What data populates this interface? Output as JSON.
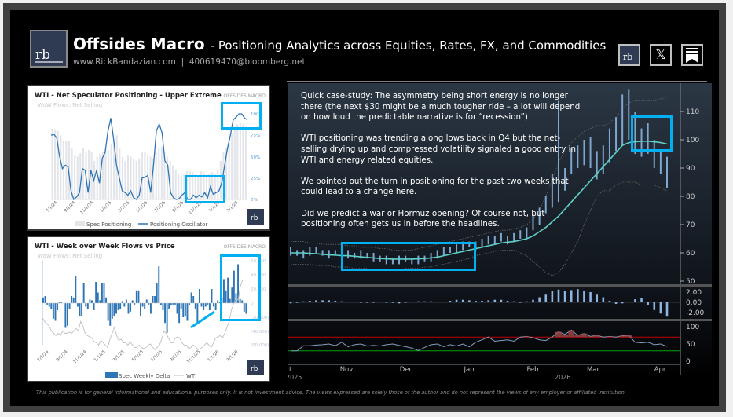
{
  "header": {
    "title": "Offsides Macro",
    "subtitle": "- Positioning Analytics across Equities, Rates, FX, and Commodities",
    "website": "www.RickBandazian.com",
    "separator": "|",
    "email": "400619470@bloomberg.net",
    "logo_text": "rb"
  },
  "social": [
    {
      "icon": "rb-logo-icon"
    },
    {
      "icon": "x-icon",
      "glyph": "𝕏"
    },
    {
      "icon": "substack-bookmark-icon"
    }
  ],
  "note": {
    "paragraphs": [
      "Quick case-study: The asymmetry being short energy is no longer there (the next $30 might be a much tougher ride – a lot will depend on how loud the predictable narrative is for “recession”)",
      "WTI positioning was trending along lows back in Q4 but the net-selling drying up and compressed volatility signaled a good entry in WTI and energy related equities.",
      "We pointed out the turn in positioning for the past two weeks that could lead to a change here.",
      "Did we predict a war or Hormuz opening? Of course not, but positioning often gets us in before the headlines."
    ]
  },
  "footer": "This publication is for general informational and educational purposes only. It is not investment advice. The views expressed are solely those of the author and do not represent the views of any employer or affiliated institution.",
  "colors": {
    "highlight": "#00b0f0",
    "oscillator": "#2e75b6",
    "bars_light": "#e7e9ee",
    "delta_bar": "#2e75b6",
    "wti_line": "#bfbfbf",
    "ma": "#5fd0c8",
    "candles": "#7fa6cc",
    "rsi_upper": "#c00000",
    "rsi_lower": "#00a000"
  },
  "chart_data": [
    {
      "type": "bar+line",
      "title": "WTI - Net Speculator Positioning - Upper Extreme",
      "subtitle": "WoW Flows: Net Selling",
      "watermark": "OFFSIDES MACRO",
      "x_ticks": [
        "7/1/24",
        "9/1/24",
        "11/1/24",
        "1/1/25",
        "3/1/25",
        "5/1/25",
        "7/1/25",
        "9/1/25",
        "11/1/25",
        "1/1/26",
        "3/1/26"
      ],
      "y_ticks": [
        "100%",
        "75%",
        "50%",
        "25%",
        "0%"
      ],
      "ylim": [
        0,
        100
      ],
      "series": [
        {
          "name": "Spec Positioning",
          "kind": "bar",
          "values": [
            83,
            82,
            80,
            75,
            68,
            68,
            68,
            60,
            52,
            50,
            54,
            60,
            56,
            58,
            55,
            45,
            50,
            53,
            55,
            60,
            58,
            65,
            70,
            75,
            60,
            50,
            45,
            52,
            50,
            47,
            45,
            48,
            55,
            55,
            52,
            50,
            48,
            55,
            60,
            62,
            55,
            50,
            45,
            40,
            35,
            30,
            28,
            30,
            33,
            33,
            32,
            30,
            28,
            33,
            32,
            30,
            30,
            32,
            30,
            35,
            45,
            55,
            60,
            72,
            78,
            85,
            88,
            90,
            88,
            85
          ]
        },
        {
          "name": "Positioning Oscillator",
          "kind": "line",
          "values": [
            75,
            76,
            72,
            50,
            36,
            40,
            38,
            10,
            0,
            3,
            8,
            36,
            34,
            8,
            34,
            22,
            34,
            19,
            48,
            55,
            80,
            95,
            70,
            40,
            25,
            10,
            8,
            5,
            10,
            2,
            0,
            5,
            25,
            26,
            28,
            8,
            40,
            80,
            88,
            78,
            45,
            40,
            8,
            2,
            0,
            1,
            5,
            8,
            0,
            0,
            5,
            2,
            5,
            3,
            8,
            2,
            15,
            6,
            8,
            10,
            20,
            40,
            60,
            75,
            93,
            96,
            100,
            100,
            95,
            93
          ]
        }
      ]
    },
    {
      "type": "bar+line",
      "title": "WTI - Week over Week Flows vs Price",
      "subtitle": "WoW Flows: Net Selling",
      "watermark": "OFFSIDES MACRO",
      "x_ticks": [
        "7/1/24",
        "9/1/24",
        "11/1/24",
        "1/1/25",
        "3/1/25",
        "5/1/25",
        "7/1/25",
        "9/1/25",
        "11/1/25",
        "1/1/26",
        "3/1/26"
      ],
      "y_ticks": [
        "60,000",
        "40,000",
        "20,000",
        "0",
        "(20,000)",
        "(40,000)",
        "(60,000)"
      ],
      "ylim": [
        -60000,
        60000
      ],
      "series": [
        {
          "name": "Spec Weekly Delta",
          "kind": "bar",
          "values": [
            8000,
            10000,
            -2000,
            -5000,
            -8000,
            -22000,
            -25000,
            -10000,
            2000,
            1000,
            0,
            -35000,
            -32000,
            -8000,
            10000,
            8000,
            38000,
            -5000,
            -18000,
            -18000,
            28000,
            -5000,
            -8000,
            5000,
            4000,
            -10000,
            30000,
            15000,
            4000,
            28000,
            28000,
            8000,
            -25000,
            -32000,
            -22000,
            -18000,
            -15000,
            -10000,
            -8000,
            3000,
            -5000,
            5000,
            -15000,
            -12000,
            4000,
            -2000,
            18000,
            18000,
            -18000,
            -5000,
            -8000,
            5000,
            -2000,
            -15000,
            10000,
            10000,
            28000,
            52000,
            -3000,
            -10000,
            -28000,
            -42000,
            -8000,
            -3000,
            -2000,
            -2000,
            -15000,
            -28000,
            -8000,
            -20000,
            -18000,
            -25000,
            -3000,
            15000,
            10000,
            -8000,
            -30000,
            20000,
            -5000,
            -10000,
            -5000,
            -2000,
            -10000,
            20000,
            -5000,
            -10000,
            4000,
            2000,
            8000,
            34000,
            18000,
            36000,
            6000,
            22000,
            46000,
            14000,
            55000,
            6000,
            4000,
            -12000,
            -15000
          ]
        },
        {
          "name": "WTI",
          "kind": "line",
          "values": [
            83,
            80,
            78,
            76,
            72,
            70,
            68,
            70,
            68,
            72,
            70,
            70,
            71,
            70,
            72,
            74,
            72,
            80,
            76,
            70,
            68,
            67,
            66,
            63,
            62,
            60,
            64,
            62,
            60,
            58,
            65,
            70,
            75,
            68,
            64,
            65,
            62,
            62,
            60,
            63,
            60,
            58,
            58,
            60,
            58,
            57,
            58,
            60,
            61,
            58,
            56,
            58,
            60,
            65,
            72,
            70,
            66,
            62,
            62,
            66,
            67,
            66,
            62,
            60,
            60,
            57,
            58,
            60,
            59,
            56,
            57,
            58,
            60,
            62,
            60,
            58,
            62,
            66,
            67,
            68,
            66,
            70,
            75,
            80,
            90,
            95,
            100,
            98,
            110,
            115
          ]
        }
      ]
    },
    {
      "type": "candlestick",
      "x_ticks": [
        "t",
        "Nov",
        "Dec",
        "Jan",
        "Feb",
        "Mar",
        "Apr"
      ],
      "x_years": [
        "2025",
        "2026"
      ],
      "y_ticks": [
        110,
        100,
        90,
        80,
        70,
        60,
        50
      ],
      "ylim": [
        50,
        118
      ],
      "ranges": [
        [
          59,
          62
        ],
        [
          59,
          61
        ],
        [
          58,
          61
        ],
        [
          59,
          62
        ],
        [
          60,
          62
        ],
        [
          59,
          61
        ],
        [
          58,
          61
        ],
        [
          59,
          61
        ],
        [
          59,
          62
        ],
        [
          58,
          61
        ],
        [
          58,
          60
        ],
        [
          58,
          61
        ],
        [
          58,
          60
        ],
        [
          57,
          60
        ],
        [
          57,
          59
        ],
        [
          56,
          59
        ],
        [
          56,
          58
        ],
        [
          56,
          59
        ],
        [
          57,
          59
        ],
        [
          56,
          58
        ],
        [
          56,
          59
        ],
        [
          57,
          59
        ],
        [
          57,
          60
        ],
        [
          58,
          61
        ],
        [
          59,
          62
        ],
        [
          60,
          62
        ],
        [
          60,
          63
        ],
        [
          61,
          64
        ],
        [
          62,
          64
        ],
        [
          61,
          64
        ],
        [
          62,
          65
        ],
        [
          63,
          66
        ],
        [
          63,
          66
        ],
        [
          64,
          67
        ],
        [
          63,
          66
        ],
        [
          64,
          67
        ],
        [
          65,
          68
        ],
        [
          65,
          69
        ],
        [
          68,
          74
        ],
        [
          70,
          76
        ],
        [
          74,
          80
        ],
        [
          76,
          88
        ],
        [
          78,
          114
        ],
        [
          82,
          90
        ],
        [
          88,
          97
        ],
        [
          90,
          98
        ],
        [
          91,
          100
        ],
        [
          90,
          101
        ],
        [
          86,
          96
        ],
        [
          88,
          98
        ],
        [
          92,
          104
        ],
        [
          96,
          108
        ],
        [
          98,
          116
        ],
        [
          100,
          118
        ],
        [
          95,
          110
        ],
        [
          94,
          104
        ],
        [
          95,
          106
        ],
        [
          90,
          100
        ],
        [
          88,
          96
        ],
        [
          83,
          94
        ]
      ],
      "moving_average": [
        60,
        60,
        60,
        59.8,
        59.7,
        59.5,
        59.3,
        59.2,
        59,
        59,
        58.8,
        58.6,
        58.4,
        58.2,
        58,
        57.9,
        57.8,
        57.8,
        57.8,
        57.8,
        57.9,
        58,
        58.2,
        58.5,
        59,
        59.5,
        60,
        60.5,
        61,
        61.5,
        62,
        62.5,
        63,
        63.5,
        63.8,
        64,
        64.5,
        65,
        66,
        67.5,
        69,
        71,
        73,
        75.5,
        78,
        80.5,
        83,
        85.5,
        88,
        90.5,
        93,
        95.5,
        98,
        99,
        99.3,
        99.5,
        99.5,
        99.3,
        99,
        98.5
      ],
      "upper_band": [
        64,
        64,
        64,
        63.5,
        63.5,
        63,
        63,
        63,
        63,
        62.5,
        62.5,
        62,
        62,
        62,
        61.5,
        61.5,
        61,
        61,
        61,
        61,
        61.5,
        62,
        62.5,
        63,
        63.5,
        64,
        64.5,
        65,
        65.5,
        66,
        66.5,
        67,
        67.5,
        68,
        68,
        68.5,
        69,
        70,
        72,
        75,
        80,
        86,
        92,
        96,
        99,
        101,
        103,
        104,
        105,
        105,
        106,
        108,
        111,
        113,
        114,
        114,
        114,
        114,
        114.5,
        115
      ],
      "lower_band": [
        56,
        56,
        56,
        56,
        55.5,
        55.5,
        55.5,
        55,
        55,
        55,
        54.5,
        54.5,
        54.5,
        54,
        54,
        54,
        54,
        54,
        54.5,
        54.5,
        54.5,
        55,
        55,
        55.5,
        56,
        56.5,
        57,
        57.5,
        58,
        59,
        59.5,
        60,
        60.5,
        61,
        61,
        61,
        60,
        59,
        57,
        55,
        53,
        52,
        53,
        56,
        60,
        64,
        70,
        75,
        80,
        82,
        82,
        84,
        85,
        85,
        85,
        84,
        84,
        84,
        83,
        82
      ],
      "histogram": {
        "y_ticks": [
          "2.00",
          "0.00",
          "-2.00"
        ],
        "values": [
          -0.2,
          -0.1,
          0.2,
          0.3,
          0.4,
          0.4,
          0.4,
          0.3,
          0.2,
          0.1,
          0.1,
          0,
          0,
          0,
          0.1,
          0,
          -0.1,
          -0.2,
          -0.1,
          0.1,
          0.2,
          0.2,
          0.2,
          0.1,
          0.1,
          0.3,
          0.5,
          0.5,
          0.4,
          0.3,
          0.3,
          0.4,
          0.5,
          0.5,
          0.3,
          0.2,
          0,
          0.2,
          0.5,
          1,
          1.5,
          2.3,
          2.5,
          2.2,
          2.4,
          2.6,
          2.3,
          2,
          1.5,
          1,
          0.3,
          -0.3,
          -0.2,
          0.1,
          0.6,
          0.8,
          -0.5,
          -1.5,
          -2.2,
          -2.8
        ]
      },
      "rsi": {
        "y_ticks": [
          "100",
          "50",
          "0"
        ],
        "upper": 70,
        "lower": 30,
        "values": [
          30,
          30,
          45,
          45,
          47,
          48,
          50,
          45,
          55,
          42,
          48,
          50,
          44,
          46,
          44,
          48,
          50,
          46,
          42,
          38,
          31,
          40,
          48,
          50,
          42,
          48,
          44,
          50,
          42,
          55,
          62,
          70,
          58,
          60,
          62,
          58,
          70,
          72,
          68,
          62,
          60,
          70,
          85,
          78,
          90,
          75,
          80,
          72,
          75,
          70,
          72,
          70,
          74,
          75,
          55,
          53,
          55,
          48,
          50,
          43
        ]
      }
    }
  ]
}
